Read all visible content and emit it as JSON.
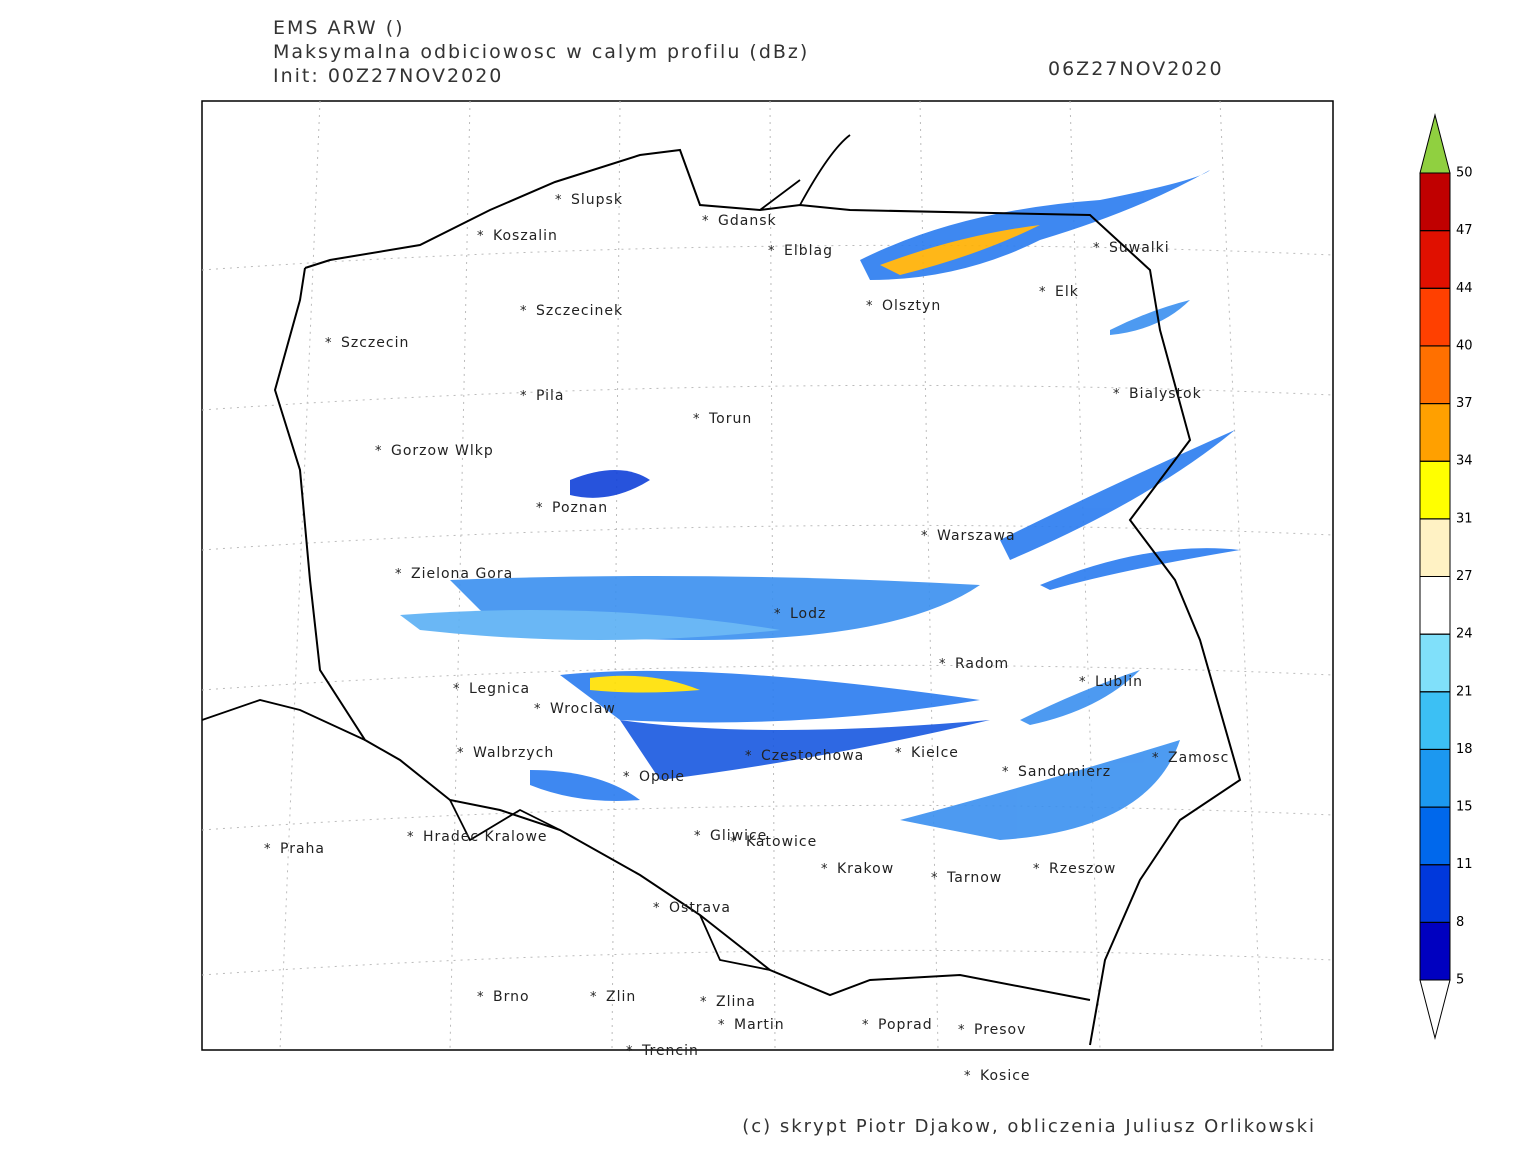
{
  "header": {
    "model": "EMS ARW ()",
    "field": "Maksymalna odbiciowosc w calym profilu (dBz)",
    "init": "Init: 00Z27NOV2020",
    "valid": "06Z27NOV2020"
  },
  "cities": [
    "Slupsk",
    "Koszalin",
    "Gdansk",
    "Elblag",
    "Suwalki",
    "Olsztyn",
    "Elk",
    "Szczecinek",
    "Szczecin",
    "Bialystok",
    "Pila",
    "Torun",
    "Gorzow Wlkp",
    "Poznan",
    "Warszawa",
    "Zielona Gora",
    "Lodz",
    "Radom",
    "Lublin",
    "Legnica",
    "Wroclaw",
    "Walbrzych",
    "Czestochowa",
    "Kielce",
    "Zamosc",
    "Opole",
    "Sandomierz",
    "Praha",
    "Hradec Kralowe",
    "Gliwice",
    "Katowice",
    "Krakow",
    "Tarnow",
    "Rzeszow",
    "Ostrava",
    "Brno",
    "Zlin",
    "Zlina",
    "Martin",
    "Poprad",
    "Presov",
    "Trencin",
    "Kosice"
  ],
  "colorbar": {
    "levels": [
      5,
      8,
      11,
      15,
      18,
      21,
      24,
      27,
      31,
      34,
      37,
      40,
      44,
      47,
      50
    ],
    "colors": [
      "#0000c0",
      "#0038dc",
      "#0068ec",
      "#1c98f0",
      "#3cc0f4",
      "#80e0fa",
      "#ffffff",
      "#fff2c4",
      "#ffff00",
      "#ffa000",
      "#ff7000",
      "#ff4000",
      "#e01000",
      "#c00000"
    ],
    "over_color": "#90d040",
    "under_color": "#ffffff"
  },
  "footer": "(c) skrypt Piotr Djakow, obliczenia Juliusz Orlikowski"
}
